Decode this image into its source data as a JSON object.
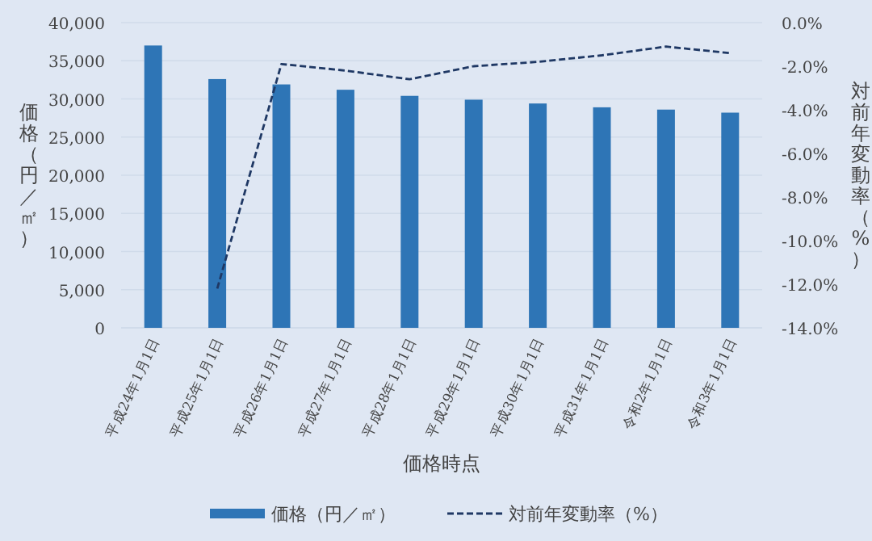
{
  "chart_data": {
    "type": "bar",
    "xlabel": "価格時点",
    "ylabel": "価格（円／㎡）",
    "y2label": "対前年変動率（%）",
    "categories": [
      "平成24年1月1日",
      "平成25年1月1日",
      "平成26年1月1日",
      "平成27年1月1日",
      "平成28年1月1日",
      "平成29年1月1日",
      "平成30年1月1日",
      "平成31年1月1日",
      "令和2年1月1日",
      "令和3年1月1日"
    ],
    "series": [
      {
        "name": "価格（円／㎡）",
        "color": "#2e75b6",
        "values": [
          37000,
          32600,
          31900,
          31200,
          30400,
          29900,
          29400,
          28900,
          28600,
          28200
        ]
      },
      {
        "name": "対前年変動率（%）",
        "type": "line",
        "axis": "y2",
        "color": "#1f3864",
        "line_style": "dashed",
        "values": [
          null,
          -12.2,
          -1.9,
          -2.2,
          -2.6,
          -2.0,
          -1.8,
          -1.5,
          -1.1,
          -1.4
        ]
      }
    ],
    "ylim": [
      0,
      40000
    ],
    "yticks": [
      {
        "value": 0,
        "label": "0"
      },
      {
        "value": 5000,
        "label": "5,000"
      },
      {
        "value": 10000,
        "label": "10,000"
      },
      {
        "value": 15000,
        "label": "15,000"
      },
      {
        "value": 20000,
        "label": "20,000"
      },
      {
        "value": 25000,
        "label": "25,000"
      },
      {
        "value": 30000,
        "label": "30,000"
      },
      {
        "value": 35000,
        "label": "35,000"
      },
      {
        "value": 40000,
        "label": "40,000"
      }
    ],
    "y2lim": [
      -14,
      0
    ],
    "y2ticks": [
      {
        "value": -14,
        "label": "-14.0%"
      },
      {
        "value": -12,
        "label": "-12.0%"
      },
      {
        "value": -10,
        "label": "-10.0%"
      },
      {
        "value": -8,
        "label": "-8.0%"
      },
      {
        "value": -6,
        "label": "-6.0%"
      },
      {
        "value": -4,
        "label": "-4.0%"
      },
      {
        "value": -2,
        "label": "-2.0%"
      },
      {
        "value": 0,
        "label": "0.0%"
      }
    ],
    "grid": "y",
    "legend": "bottom"
  }
}
